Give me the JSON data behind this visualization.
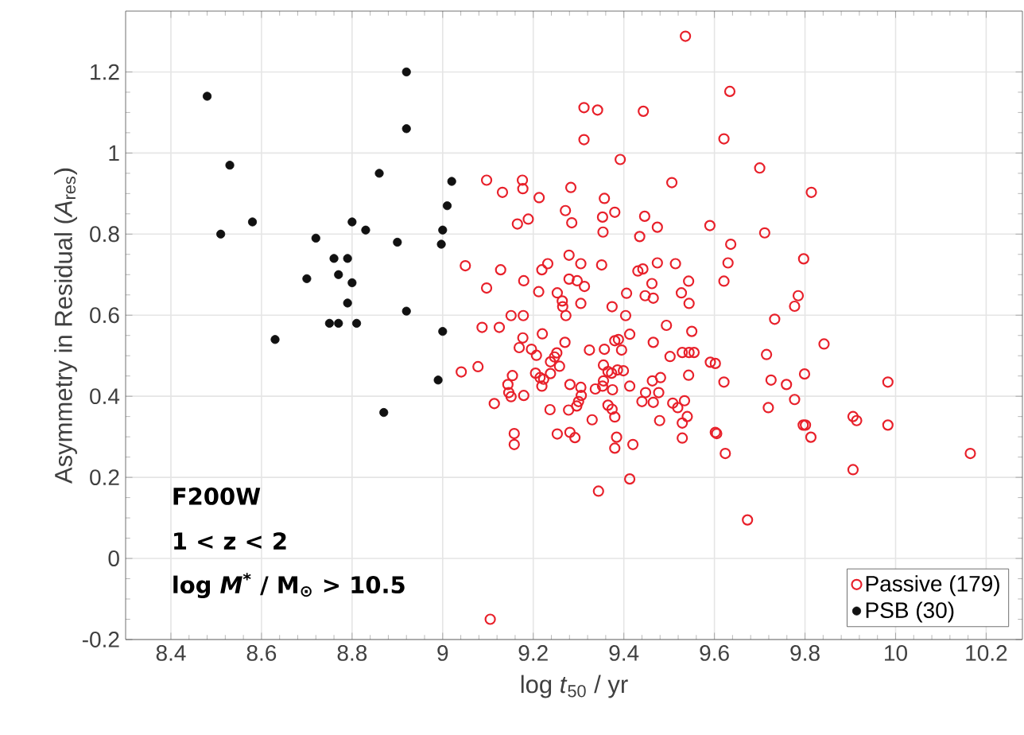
{
  "chart_data": {
    "type": "scatter",
    "xlabel": "log *t*$_{50}$ / yr",
    "ylabel": "Asymmetry in Residual (*A*$_{res}$)",
    "xlim": [
      8.3,
      10.28
    ],
    "ylim": [
      -0.2,
      1.35
    ],
    "xticks": [
      8.4,
      8.6,
      8.8,
      9,
      9.2,
      9.4,
      9.6,
      9.8,
      10,
      10.2
    ],
    "yticks": [
      -0.2,
      0,
      0.2,
      0.4,
      0.6,
      0.8,
      1,
      1.2
    ],
    "grid": true,
    "legend": "bottom right",
    "marker": "circle",
    "annotations": [
      "F200W",
      "1 < z < 2",
      "log *M*$^{*}$ / M$_{⊙}$ > 10.5"
    ],
    "series": [
      {
        "name": "Passive (179)",
        "color": "#e8202a",
        "x": [
          9.536,
          9.312,
          9.342,
          9.443,
          9.312,
          9.392,
          9.097,
          9.176,
          9.132,
          9.177,
          9.213,
          9.283,
          9.506,
          9.357,
          9.271,
          9.38,
          9.446,
          9.189,
          9.165,
          9.285,
          9.353,
          9.354,
          9.474,
          9.59,
          9.435,
          9.05,
          9.128,
          9.179,
          9.232,
          9.219,
          9.279,
          9.305,
          9.351,
          9.431,
          9.442,
          9.474,
          9.514,
          9.097,
          9.279,
          9.297,
          9.313,
          9.212,
          9.253,
          9.264,
          9.265,
          9.305,
          9.406,
          9.462,
          9.447,
          9.465,
          9.543,
          9.527,
          9.544,
          9.374,
          9.272,
          9.404,
          9.151,
          9.178,
          9.087,
          9.125,
          9.494,
          9.55,
          9.177,
          9.22,
          9.413,
          9.38,
          9.388,
          9.465,
          9.169,
          9.196,
          9.207,
          9.27,
          9.324,
          9.357,
          9.395,
          9.544,
          9.529,
          9.502,
          9.252,
          9.247,
          9.238,
          9.041,
          9.078,
          9.114,
          9.154,
          9.144,
          9.146,
          9.151,
          9.179,
          9.158,
          9.158,
          9.205,
          9.215,
          9.223,
          9.219,
          9.238,
          9.258,
          9.237,
          9.253,
          9.281,
          9.278,
          9.281,
          9.292,
          9.305,
          9.306,
          9.3,
          9.296,
          9.33,
          9.337,
          9.355,
          9.355,
          9.353,
          9.365,
          9.375,
          9.373,
          9.386,
          9.399,
          9.365,
          9.374,
          9.38,
          9.384,
          9.38,
          9.42,
          9.344,
          9.413,
          9.413,
          9.44,
          9.448,
          9.463,
          9.465,
          9.477,
          9.481,
          9.479,
          9.508,
          9.519,
          9.529,
          9.529,
          9.534,
          9.54,
          9.543,
          9.555,
          9.602,
          9.602,
          9.105,
          9.634,
          9.621,
          9.7,
          9.814,
          9.711,
          9.636,
          9.63,
          9.797,
          9.621,
          9.785,
          9.777,
          9.733,
          9.842,
          9.715,
          9.591,
          9.621,
          9.725,
          9.759,
          9.799,
          9.777,
          9.719,
          9.605,
          9.624,
          9.796,
          9.801,
          9.813,
          9.906,
          9.914,
          9.983,
          9.983,
          9.906,
          9.673,
          10.165
        ],
        "values": [
          1.288,
          1.112,
          1.106,
          1.103,
          1.033,
          0.984,
          0.933,
          0.933,
          0.903,
          0.912,
          0.89,
          0.915,
          0.927,
          0.888,
          0.858,
          0.854,
          0.844,
          0.837,
          0.825,
          0.828,
          0.842,
          0.805,
          0.817,
          0.821,
          0.794,
          0.722,
          0.712,
          0.685,
          0.727,
          0.712,
          0.748,
          0.727,
          0.724,
          0.709,
          0.714,
          0.729,
          0.727,
          0.667,
          0.689,
          0.685,
          0.671,
          0.658,
          0.655,
          0.635,
          0.621,
          0.629,
          0.654,
          0.678,
          0.648,
          0.642,
          0.684,
          0.655,
          0.629,
          0.621,
          0.599,
          0.599,
          0.599,
          0.599,
          0.57,
          0.57,
          0.575,
          0.56,
          0.544,
          0.554,
          0.553,
          0.537,
          0.54,
          0.533,
          0.52,
          0.516,
          0.501,
          0.533,
          0.514,
          0.516,
          0.514,
          0.508,
          0.508,
          0.498,
          0.507,
          0.497,
          0.485,
          0.46,
          0.473,
          0.382,
          0.451,
          0.429,
          0.409,
          0.399,
          0.402,
          0.308,
          0.281,
          0.457,
          0.446,
          0.442,
          0.425,
          0.456,
          0.474,
          0.367,
          0.307,
          0.429,
          0.366,
          0.311,
          0.298,
          0.422,
          0.402,
          0.387,
          0.376,
          0.342,
          0.418,
          0.477,
          0.438,
          0.425,
          0.461,
          0.416,
          0.457,
          0.465,
          0.463,
          0.378,
          0.368,
          0.349,
          0.299,
          0.272,
          0.281,
          0.166,
          0.196,
          0.425,
          0.387,
          0.409,
          0.438,
          0.385,
          0.409,
          0.446,
          0.34,
          0.383,
          0.372,
          0.334,
          0.297,
          0.389,
          0.35,
          0.452,
          0.508,
          0.481,
          0.311,
          -0.15,
          1.152,
          1.035,
          0.963,
          0.903,
          0.803,
          0.775,
          0.729,
          0.739,
          0.684,
          0.648,
          0.622,
          0.59,
          0.529,
          0.503,
          0.484,
          0.435,
          0.44,
          0.429,
          0.455,
          0.392,
          0.372,
          0.308,
          0.259,
          0.329,
          0.329,
          0.299,
          0.35,
          0.34,
          0.435,
          0.329,
          0.219,
          0.095,
          0.259
        ]
      },
      {
        "name": "PSB (30)",
        "color": "#111111",
        "x": [
          8.48,
          8.53,
          8.51,
          8.58,
          8.72,
          8.7,
          8.76,
          8.79,
          8.77,
          8.8,
          8.79,
          8.75,
          8.77,
          8.81,
          8.8,
          8.83,
          8.86,
          8.9,
          8.92,
          8.92,
          8.92,
          8.63,
          8.87,
          9.02,
          9.01,
          9.0,
          8.997,
          9.0,
          8.99
        ],
        "values": [
          1.14,
          0.97,
          0.8,
          0.83,
          0.79,
          0.69,
          0.74,
          0.74,
          0.7,
          0.68,
          0.63,
          0.58,
          0.58,
          0.58,
          0.83,
          0.81,
          0.95,
          0.78,
          1.06,
          1.2,
          0.61,
          0.54,
          0.36,
          0.93,
          0.87,
          0.81,
          0.775,
          0.56,
          0.44
        ]
      }
    ]
  }
}
